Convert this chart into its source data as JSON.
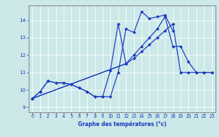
{
  "xlabel": "Graphe des températures (°c)",
  "bg_color": "#cce8e8",
  "line_color": "#1a3abf",
  "xlim": [
    -0.5,
    23.5
  ],
  "ylim": [
    8.7,
    14.85
  ],
  "xticks": [
    0,
    1,
    2,
    3,
    4,
    5,
    6,
    7,
    8,
    9,
    10,
    11,
    12,
    13,
    14,
    15,
    16,
    17,
    18,
    19,
    20,
    21,
    22,
    23
  ],
  "yticks": [
    9,
    10,
    11,
    12,
    13,
    14
  ],
  "line1_x": [
    0,
    1,
    2,
    3,
    4,
    5,
    6,
    7,
    8,
    9,
    10,
    11,
    12,
    13,
    14,
    15,
    16,
    17,
    18
  ],
  "line1_y": [
    9.5,
    9.9,
    10.5,
    10.4,
    10.4,
    10.3,
    10.1,
    9.9,
    9.6,
    9.6,
    9.6,
    11.0,
    13.5,
    13.3,
    14.5,
    14.1,
    14.2,
    14.3,
    13.4
  ],
  "line2_x": [
    0,
    1,
    2,
    3,
    4,
    5,
    6,
    7,
    8,
    9,
    10,
    11,
    12
  ],
  "line2_y": [
    9.5,
    9.9,
    10.5,
    10.4,
    10.4,
    10.3,
    10.1,
    9.9,
    9.6,
    9.6,
    11.1,
    13.8,
    11.5
  ],
  "line3_x": [
    0,
    12,
    13,
    14,
    15,
    16,
    17,
    18,
    19,
    20,
    21,
    22,
    23
  ],
  "line3_y": [
    9.5,
    11.5,
    12.0,
    12.5,
    13.0,
    13.5,
    14.2,
    12.5,
    12.5,
    11.6,
    11.0,
    11.0,
    11.0
  ],
  "line4_x": [
    0,
    12,
    13,
    14,
    15,
    16,
    17,
    18,
    19,
    20,
    21,
    22,
    23
  ],
  "line4_y": [
    9.5,
    11.5,
    11.8,
    12.2,
    12.6,
    13.0,
    13.4,
    13.8,
    11.0,
    11.0,
    11.0,
    11.0,
    11.0
  ],
  "grid_color": "#b0d4d4",
  "spine_color": "#808080",
  "tick_label_fontsize": 4.8,
  "xlabel_fontsize": 5.5
}
